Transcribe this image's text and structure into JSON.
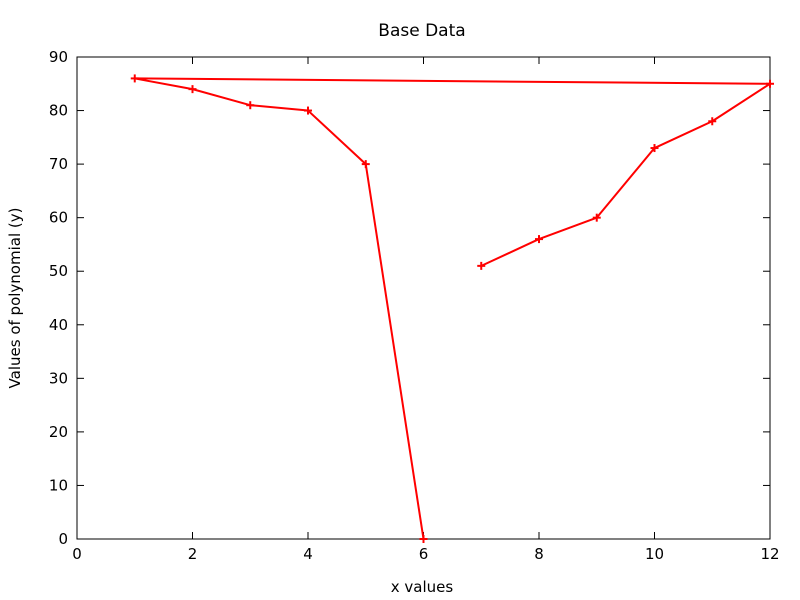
{
  "chart_data": {
    "type": "line",
    "title": "Base Data",
    "xlabel": "x values",
    "ylabel": "Values of polynomial (y)",
    "xlim": [
      0,
      12
    ],
    "ylim": [
      0,
      90
    ],
    "xticks": [
      0,
      2,
      4,
      6,
      8,
      10,
      12
    ],
    "yticks": [
      0,
      10,
      20,
      30,
      40,
      50,
      60,
      70,
      80,
      90
    ],
    "grid": false,
    "series": [
      {
        "color": "#ff0000",
        "marker": "plus",
        "points": [
          {
            "x": 7,
            "y": 51
          },
          {
            "x": 8,
            "y": 56
          },
          {
            "x": 9,
            "y": 60
          },
          {
            "x": 10,
            "y": 73
          },
          {
            "x": 11,
            "y": 78
          },
          {
            "x": 12,
            "y": 85
          },
          {
            "x": 1,
            "y": 86
          },
          {
            "x": 2,
            "y": 84
          },
          {
            "x": 3,
            "y": 81
          },
          {
            "x": 4,
            "y": 80
          },
          {
            "x": 5,
            "y": 70
          },
          {
            "x": 6,
            "y": 0
          }
        ]
      }
    ]
  }
}
